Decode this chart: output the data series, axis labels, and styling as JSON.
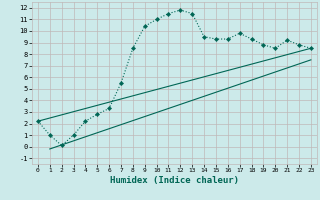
{
  "xlabel": "Humidex (Indice chaleur)",
  "bg_color": "#cceaea",
  "grid_color": "#c0b8b8",
  "line_color": "#006655",
  "xlim": [
    -0.5,
    23.5
  ],
  "ylim": [
    -1.5,
    12.5
  ],
  "xticks": [
    0,
    1,
    2,
    3,
    4,
    5,
    6,
    7,
    8,
    9,
    10,
    11,
    12,
    13,
    14,
    15,
    16,
    17,
    18,
    19,
    20,
    21,
    22,
    23
  ],
  "yticks": [
    -1,
    0,
    1,
    2,
    3,
    4,
    5,
    6,
    7,
    8,
    9,
    10,
    11,
    12
  ],
  "curve_x": [
    0,
    1,
    2,
    3,
    4,
    5,
    6,
    7,
    8,
    9,
    10,
    11,
    12,
    13,
    14,
    15,
    16,
    17,
    18,
    19,
    20,
    21,
    22,
    23
  ],
  "curve_y": [
    2.2,
    1.0,
    0.1,
    1.0,
    2.2,
    2.8,
    3.3,
    5.5,
    8.5,
    10.4,
    11.0,
    11.5,
    11.8,
    11.5,
    9.5,
    9.3,
    9.3,
    9.8,
    9.3,
    8.8,
    8.5,
    9.2,
    8.8,
    8.5
  ],
  "line1_x": [
    0,
    23
  ],
  "line1_y": [
    2.2,
    8.5
  ],
  "line2_x": [
    1,
    23
  ],
  "line2_y": [
    -0.2,
    7.5
  ]
}
